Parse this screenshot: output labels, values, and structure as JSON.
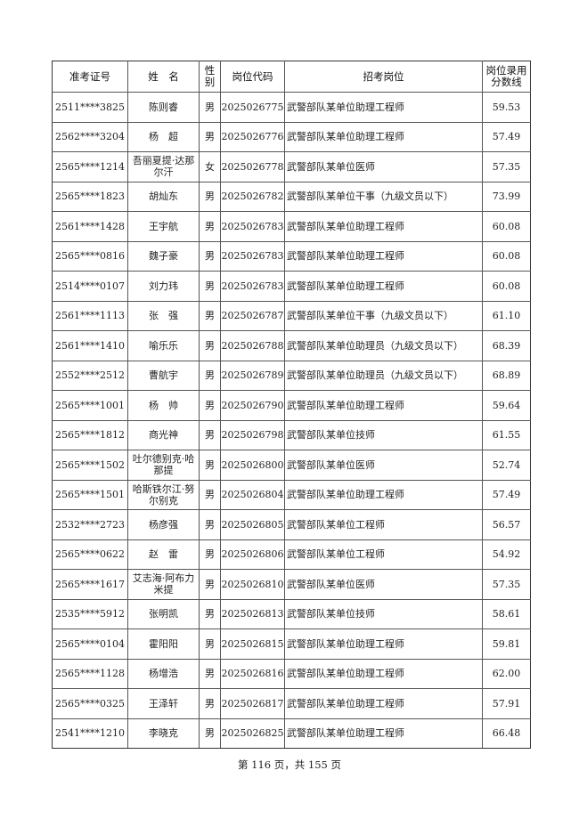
{
  "table": {
    "headers": [
      "准考证号",
      "姓　名",
      "性别",
      "岗位代码",
      "招考岗位",
      "岗位录用分数线"
    ],
    "rows": [
      [
        "2511****3825",
        "陈则睿",
        "男",
        "2025026775",
        "武警部队某单位助理工程师",
        "59.53"
      ],
      [
        "2562****3204",
        "杨　超",
        "男",
        "2025026776",
        "武警部队某单位助理工程师",
        "57.49"
      ],
      [
        "2565****1214",
        "吾丽夏提·达那尔汗",
        "女",
        "2025026778",
        "武警部队某单位医师",
        "57.35"
      ],
      [
        "2565****1823",
        "胡灿东",
        "男",
        "2025026782",
        "武警部队某单位干事（九级文员以下）",
        "73.99"
      ],
      [
        "2561****1428",
        "王宇航",
        "男",
        "2025026783",
        "武警部队某单位助理工程师",
        "60.08"
      ],
      [
        "2565****0816",
        "魏子豪",
        "男",
        "2025026783",
        "武警部队某单位助理工程师",
        "60.08"
      ],
      [
        "2514****0107",
        "刘力玮",
        "男",
        "2025026783",
        "武警部队某单位助理工程师",
        "60.08"
      ],
      [
        "2561****1113",
        "张　强",
        "男",
        "2025026787",
        "武警部队某单位干事（九级文员以下）",
        "61.10"
      ],
      [
        "2561****1410",
        "喻乐乐",
        "男",
        "2025026788",
        "武警部队某单位助理员（九级文员以下）",
        "68.39"
      ],
      [
        "2552****2512",
        "曹航宇",
        "男",
        "2025026789",
        "武警部队某单位助理员（九级文员以下）",
        "68.89"
      ],
      [
        "2565****1001",
        "杨　帅",
        "男",
        "2025026790",
        "武警部队某单位助理工程师",
        "59.64"
      ],
      [
        "2565****1812",
        "商光神",
        "男",
        "2025026798",
        "武警部队某单位技师",
        "61.55"
      ],
      [
        "2565****1502",
        "吐尔德别克·哈那提",
        "男",
        "2025026800",
        "武警部队某单位医师",
        "52.74"
      ],
      [
        "2565****1501",
        "哈斯铁尔江·努尔别克",
        "男",
        "2025026804",
        "武警部队某单位助理工程师",
        "57.49"
      ],
      [
        "2532****2723",
        "杨彦强",
        "男",
        "2025026805",
        "武警部队某单位工程师",
        "56.57"
      ],
      [
        "2565****0622",
        "赵　雷",
        "男",
        "2025026806",
        "武警部队某单位工程师",
        "54.92"
      ],
      [
        "2565****1617",
        "艾志海·阿布力米提",
        "男",
        "2025026810",
        "武警部队某单位医师",
        "57.35"
      ],
      [
        "2535****5912",
        "张明凯",
        "男",
        "2025026813",
        "武警部队某单位技师",
        "58.61"
      ],
      [
        "2565****0104",
        "霍阳阳",
        "男",
        "2025026815",
        "武警部队某单位助理工程师",
        "59.81"
      ],
      [
        "2565****1128",
        "杨增浩",
        "男",
        "2025026816",
        "武警部队某单位助理工程师",
        "62.00"
      ],
      [
        "2565****0325",
        "王泽轩",
        "男",
        "2025026817",
        "武警部队某单位助理工程师",
        "57.91"
      ],
      [
        "2541****1210",
        "李晓克",
        "男",
        "2025026825",
        "武警部队某单位助理工程师",
        "66.48"
      ]
    ]
  },
  "footer": {
    "page_label": "第 116 页，共 155 页"
  }
}
